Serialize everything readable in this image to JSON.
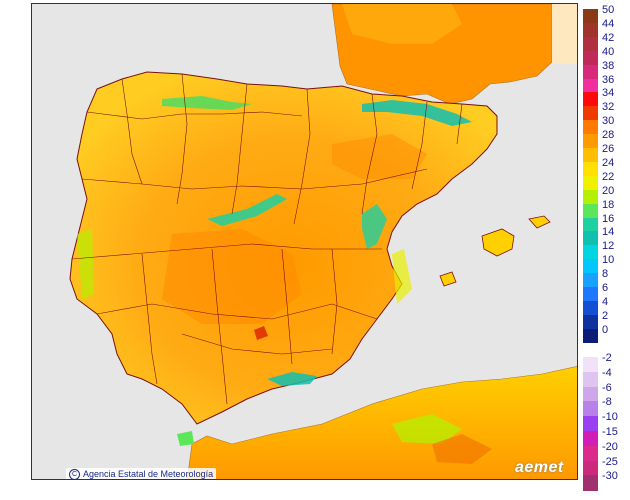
{
  "credit": "Agencia Estatal de Meteorología",
  "brand": "aemet",
  "legend": {
    "warm": [
      {
        "label": "50",
        "color": "#8b3a16"
      },
      {
        "label": "44",
        "color": "#a0342b"
      },
      {
        "label": "42",
        "color": "#b03040"
      },
      {
        "label": "40",
        "color": "#c02a58"
      },
      {
        "label": "38",
        "color": "#d82a7a"
      },
      {
        "label": "36",
        "color": "#f02fa0"
      },
      {
        "label": "34",
        "color": "#ff0a0a"
      },
      {
        "label": "32",
        "color": "#f03a00"
      },
      {
        "label": "30",
        "color": "#ff7a00"
      },
      {
        "label": "28",
        "color": "#ff9a00"
      },
      {
        "label": "26",
        "color": "#ffbe00"
      },
      {
        "label": "24",
        "color": "#ffe000"
      },
      {
        "label": "22",
        "color": "#f0f000"
      },
      {
        "label": "20",
        "color": "#b4f000"
      },
      {
        "label": "18",
        "color": "#5ce65a"
      },
      {
        "label": "16",
        "color": "#1fd0a0"
      },
      {
        "label": "14",
        "color": "#10c0b0"
      },
      {
        "label": "12",
        "color": "#00d6e0"
      },
      {
        "label": "10",
        "color": "#00c8ff"
      },
      {
        "label": "8",
        "color": "#1aa0ff"
      },
      {
        "label": "6",
        "color": "#1e78ff"
      },
      {
        "label": "4",
        "color": "#1450d2"
      },
      {
        "label": "2",
        "color": "#0f32a0"
      },
      {
        "label": "0",
        "color": "#0a1e78"
      }
    ],
    "cold": [
      {
        "label": "-2",
        "color": "#f2e2f7"
      },
      {
        "label": "-4",
        "color": "#e0c4f0"
      },
      {
        "label": "-6",
        "color": "#cfa6ea"
      },
      {
        "label": "-8",
        "color": "#b980e8"
      },
      {
        "label": "-10",
        "color": "#9a40f0"
      },
      {
        "label": "-15",
        "color": "#cf1fb6"
      },
      {
        "label": "-20",
        "color": "#dc2a8c"
      },
      {
        "label": "-25",
        "color": "#cc2a7c"
      },
      {
        "label": "-30",
        "color": "#a0306e"
      }
    ]
  }
}
